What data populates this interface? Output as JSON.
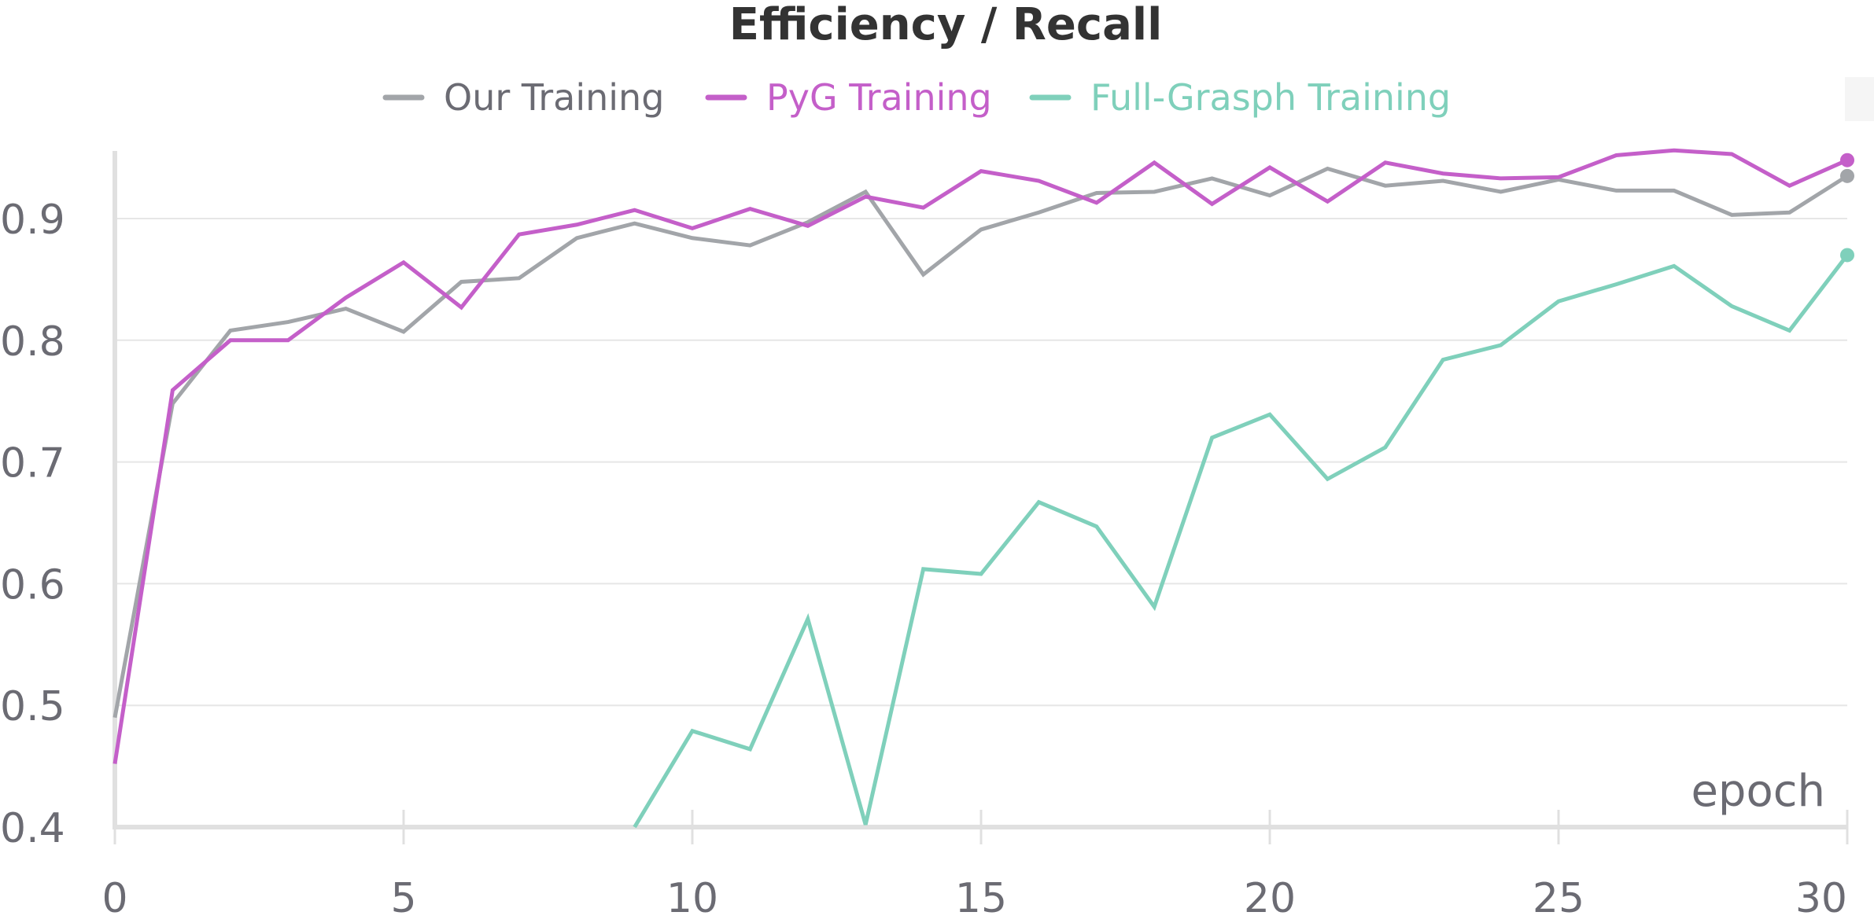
{
  "chart_data": {
    "type": "line",
    "title": "Efficiency / Recall",
    "xlabel": "epoch",
    "ylabel": "",
    "xlim": [
      0,
      30
    ],
    "ylim": [
      0.4,
      0.97
    ],
    "x_ticks": [
      "0",
      "5",
      "10",
      "15",
      "20",
      "25",
      "30"
    ],
    "x_tick_values": [
      0,
      5,
      10,
      15,
      20,
      25,
      30
    ],
    "y_ticks": [
      "0.4",
      "0.5",
      "0.6",
      "0.7",
      "0.8",
      "0.9"
    ],
    "y_tick_values": [
      0.4,
      0.5,
      0.6,
      0.7,
      0.8,
      0.9
    ],
    "grid": true,
    "legend_position": "top-center",
    "series": [
      {
        "name": "Our Training",
        "color": "#a2a5a9",
        "x": [
          0,
          1,
          2,
          3,
          4,
          5,
          6,
          7,
          8,
          9,
          10,
          11,
          12,
          13,
          14,
          15,
          16,
          17,
          18,
          19,
          20,
          21,
          22,
          23,
          24,
          25,
          26,
          27,
          28,
          29,
          30
        ],
        "values": [
          0.49,
          0.748,
          0.808,
          0.815,
          0.826,
          0.807,
          0.848,
          0.851,
          0.884,
          0.896,
          0.884,
          0.878,
          0.897,
          0.922,
          0.854,
          0.891,
          0.905,
          0.921,
          0.922,
          0.933,
          0.919,
          0.941,
          0.927,
          0.931,
          0.922,
          0.932,
          0.923,
          0.923,
          0.903,
          0.905,
          0.935
        ]
      },
      {
        "name": "PyG Training",
        "color": "#c45fc9",
        "x": [
          0,
          1,
          2,
          3,
          4,
          5,
          6,
          7,
          8,
          9,
          10,
          11,
          12,
          13,
          14,
          15,
          16,
          17,
          18,
          19,
          20,
          21,
          22,
          23,
          24,
          25,
          26,
          27,
          28,
          29,
          30
        ],
        "values": [
          0.452,
          0.759,
          0.8,
          0.8,
          0.835,
          0.864,
          0.827,
          0.887,
          0.895,
          0.907,
          0.892,
          0.908,
          0.894,
          0.918,
          0.909,
          0.939,
          0.931,
          0.913,
          0.946,
          0.912,
          0.942,
          0.914,
          0.946,
          0.937,
          0.933,
          0.934,
          0.952,
          0.956,
          0.953,
          0.927,
          0.948
        ]
      },
      {
        "name": "Full-Grasph Training",
        "color": "#7fd0bb",
        "x": [
          9,
          10,
          11,
          12,
          13,
          14,
          15,
          16,
          17,
          18,
          19,
          20,
          21,
          22,
          23,
          24,
          25,
          26,
          27,
          28,
          29,
          30
        ],
        "values": [
          0.4,
          0.479,
          0.464,
          0.571,
          0.402,
          0.612,
          0.608,
          0.667,
          0.647,
          0.581,
          0.72,
          0.739,
          0.686,
          0.712,
          0.784,
          0.796,
          0.832,
          0.846,
          0.861,
          0.828,
          0.808,
          0.87
        ]
      }
    ]
  }
}
